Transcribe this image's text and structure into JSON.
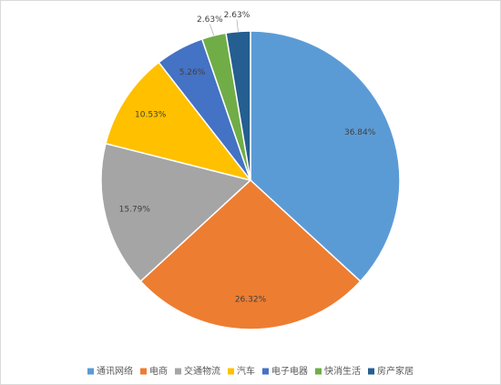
{
  "chart_data": {
    "type": "pie",
    "categories": [
      "通讯网络",
      "电商",
      "交通物流",
      "汽车",
      "电子电器",
      "快消生活",
      "房产家居"
    ],
    "values": [
      36.84,
      26.32,
      15.79,
      10.53,
      5.26,
      2.63,
      2.63
    ],
    "value_labels": [
      "36.84%",
      "26.32%",
      "15.79%",
      "10.53%",
      "5.26%",
      "2.63%",
      "2.63%"
    ],
    "colors": [
      "#5b9bd5",
      "#ed7d31",
      "#a5a5a5",
      "#ffc000",
      "#4472c4",
      "#70ad47",
      "#255e91"
    ],
    "legend": "bottom"
  }
}
